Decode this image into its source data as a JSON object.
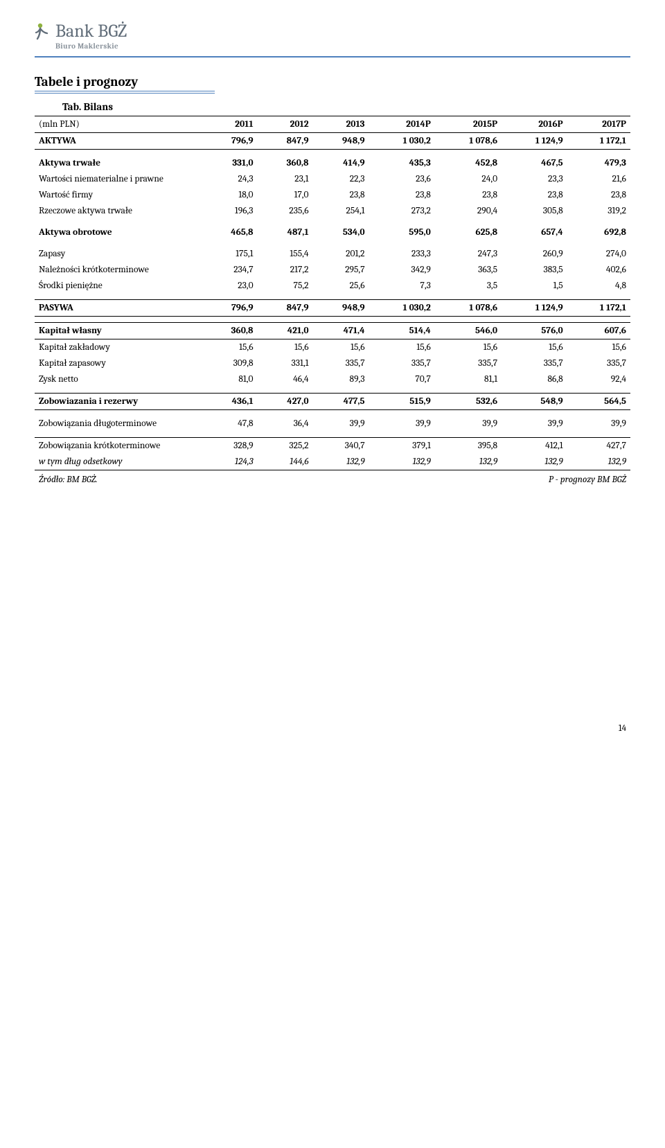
{
  "brand": {
    "name": "Bank BGŻ",
    "sub": "Biuro Maklerskie"
  },
  "section_title": "Tabele i prognozy",
  "table_title": "Tab. Bilans",
  "header": {
    "unit": "(mln PLN)",
    "cols": [
      "2011",
      "2012",
      "2013",
      "2014P",
      "2015P",
      "2016P",
      "2017P"
    ]
  },
  "rows": [
    {
      "k": "aktywa",
      "label": "AKTYWA",
      "v": [
        "796,9",
        "847,9",
        "948,9",
        "1 030,2",
        "1 078,6",
        "1 124,9",
        "1 172,1"
      ],
      "style": "bold rule-thick rule-bottom"
    },
    {
      "k": "sp",
      "spacer": true
    },
    {
      "k": "aktywa_trwale",
      "label": "Aktywa trwałe",
      "v": [
        "331,0",
        "360,8",
        "414,9",
        "435,3",
        "452,8",
        "467,5",
        "479,3"
      ],
      "style": "bold"
    },
    {
      "k": "wartosci_niemat",
      "label": "Wartości niematerialne i prawne",
      "v": [
        "24,3",
        "23,1",
        "22,3",
        "23,6",
        "24,0",
        "23,3",
        "21,6"
      ]
    },
    {
      "k": "wartosc_firmy",
      "label": "Wartość firmy",
      "v": [
        "18,0",
        "17,0",
        "23,8",
        "23,8",
        "23,8",
        "23,8",
        "23,8"
      ]
    },
    {
      "k": "rzeczowe",
      "label": "Rzeczowe aktywa trwałe",
      "v": [
        "196,3",
        "235,6",
        "254,1",
        "273,2",
        "290,4",
        "305,8",
        "319,2"
      ]
    },
    {
      "k": "sp2",
      "spacer": true
    },
    {
      "k": "aktywa_obrotowe",
      "label": "Aktywa obrotowe",
      "v": [
        "465,8",
        "487,1",
        "534,0",
        "595,0",
        "625,8",
        "657,4",
        "692,8"
      ],
      "style": "bold"
    },
    {
      "k": "sp3",
      "spacer": true
    },
    {
      "k": "zapasy",
      "label": "Zapasy",
      "v": [
        "175,1",
        "155,4",
        "201,2",
        "233,3",
        "247,3",
        "260,9",
        "274,0"
      ]
    },
    {
      "k": "naleznosci",
      "label": "Należności krótkoterminowe",
      "v": [
        "234,7",
        "217,2",
        "295,7",
        "342,9",
        "363,5",
        "383,5",
        "402,6"
      ]
    },
    {
      "k": "srodki",
      "label": "Środki pieniężne",
      "v": [
        "23,0",
        "75,2",
        "25,6",
        "7,3",
        "3,5",
        "1,5",
        "4,8"
      ]
    },
    {
      "k": "sp4",
      "spacer": true
    },
    {
      "k": "pasywa",
      "label": "PASYWA",
      "v": [
        "796,9",
        "847,9",
        "948,9",
        "1 030,2",
        "1 078,6",
        "1 124,9",
        "1 172,1"
      ],
      "style": "bold rule-thin rule-bottom"
    },
    {
      "k": "sp5",
      "spacer": true
    },
    {
      "k": "kapital_wlasny",
      "label": "Kapitał własny",
      "v": [
        "360,8",
        "421,0",
        "471,4",
        "514,4",
        "546,0",
        "576,0",
        "607,6"
      ],
      "style": "bold rule-thin rule-bottom"
    },
    {
      "k": "kapital_zakl",
      "label": "Kapitał zakładowy",
      "v": [
        "15,6",
        "15,6",
        "15,6",
        "15,6",
        "15,6",
        "15,6",
        "15,6"
      ]
    },
    {
      "k": "kapital_zap",
      "label": "Kapitał zapasowy",
      "v": [
        "309,8",
        "331,1",
        "335,7",
        "335,7",
        "335,7",
        "335,7",
        "335,7"
      ]
    },
    {
      "k": "zysk",
      "label": "Zysk netto",
      "v": [
        "81,0",
        "46,4",
        "89,3",
        "70,7",
        "81,1",
        "86,8",
        "92,4"
      ]
    },
    {
      "k": "sp6",
      "spacer": true
    },
    {
      "k": "zob_rezerwy",
      "label": "Zobowiazania i rezerwy",
      "v": [
        "436,1",
        "427,0",
        "477,5",
        "515,9",
        "532,6",
        "548,9",
        "564,5"
      ],
      "style": "bold rule-thin rule-bottom"
    },
    {
      "k": "sp7",
      "spacer": true
    },
    {
      "k": "zob_dlugo",
      "label": "Zobowiązania długoterminowe",
      "v": [
        "47,8",
        "36,4",
        "39,9",
        "39,9",
        "39,9",
        "39,9",
        "39,9"
      ]
    },
    {
      "k": "sp8",
      "spacer": true
    },
    {
      "k": "zob_krotko",
      "label": "Zobowiązania krótkoterminowe",
      "v": [
        "328,9",
        "325,2",
        "340,7",
        "379,1",
        "395,8",
        "412,1",
        "427,7"
      ],
      "style": "rule-thin"
    },
    {
      "k": "w_tym",
      "label": "w tym dług odsetkowy",
      "v": [
        "124,3",
        "144,6",
        "132,9",
        "132,9",
        "132,9",
        "132,9",
        "132,9"
      ],
      "style": "italic rule-thick-bottom"
    }
  ],
  "footer": {
    "left": "Źródło: BM BGŻ.",
    "right": "P - prognozy BM BGŻ"
  },
  "page_number": "14",
  "colors": {
    "rule": "#4f81bd",
    "text_muted": "#616d79"
  }
}
